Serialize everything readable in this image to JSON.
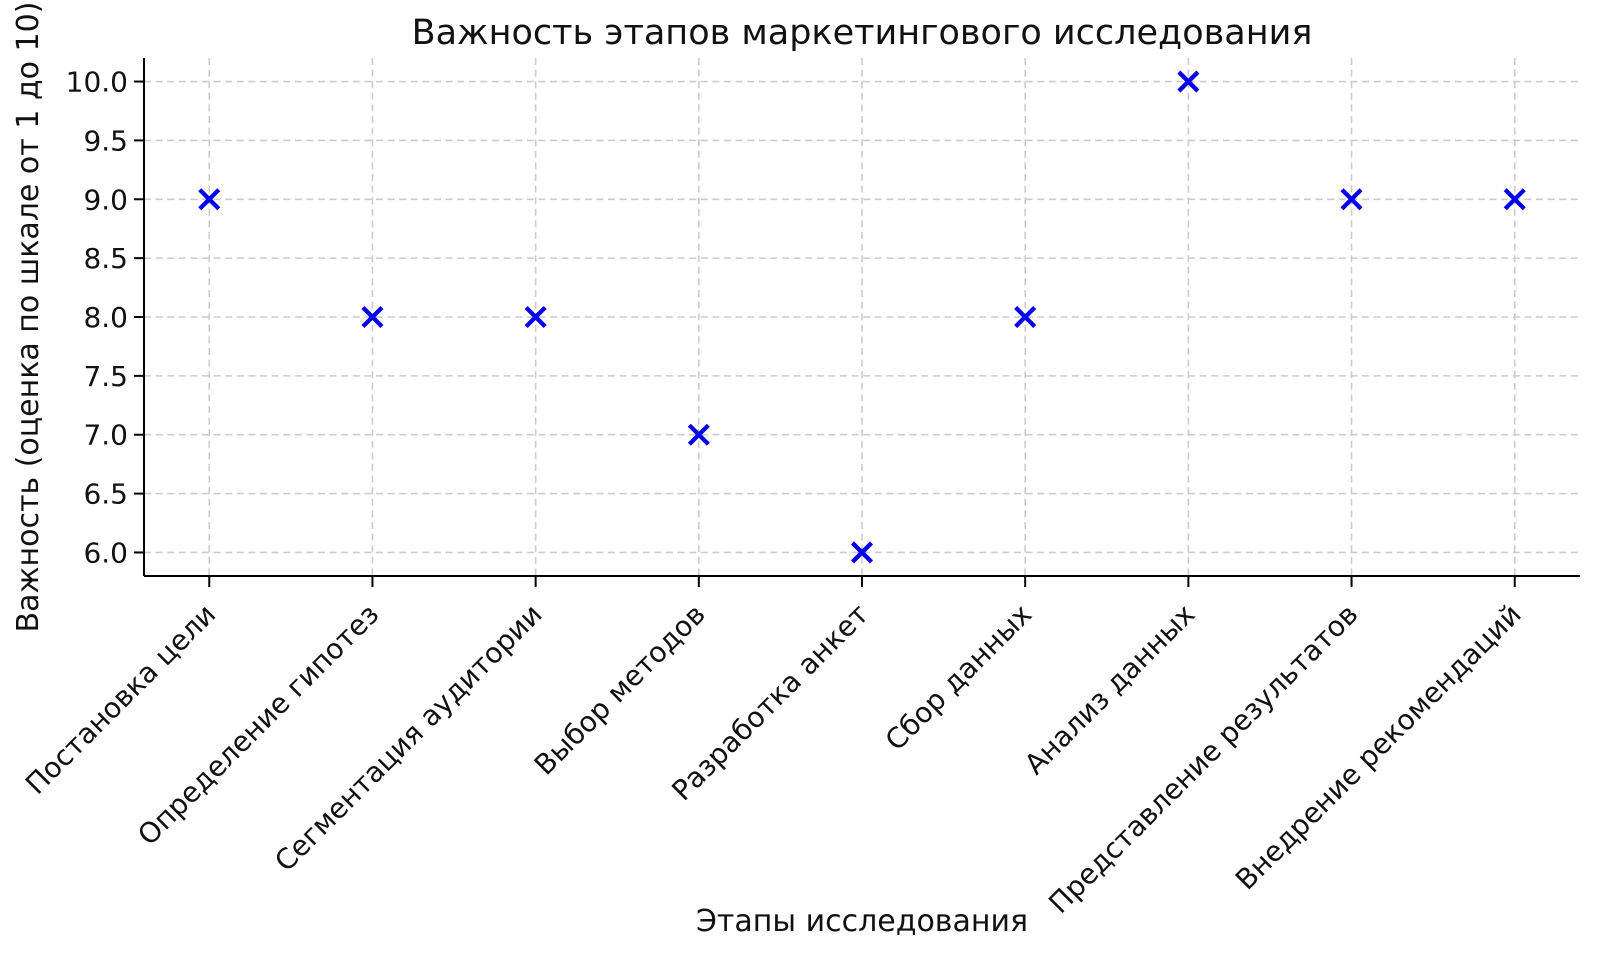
{
  "chart_data": {
    "type": "scatter",
    "title": "Важность этапов маркетингового исследования",
    "xlabel": "Этапы исследования",
    "ylabel": "Важность (оценка по шкале от 1 до 10)",
    "categories": [
      "Постановка цели",
      "Определение гипотез",
      "Сегментация аудитории",
      "Выбор методов",
      "Разработка анкет",
      "Сбор данных",
      "Анализ данных",
      "Представление результатов",
      "Внедрение рекомендаций"
    ],
    "values": [
      9,
      8,
      8,
      7,
      6,
      8,
      10,
      9,
      9
    ],
    "y_tick_labels": [
      "6.0",
      "6.5",
      "7.0",
      "7.5",
      "8.0",
      "8.5",
      "9.0",
      "9.5",
      "10.0"
    ],
    "ylim": [
      5.8,
      10.2
    ],
    "x_pad_categories": 0.4,
    "grid": true,
    "grid_style": "dashed",
    "legend": "none",
    "marker": {
      "shape": "x",
      "color": "#0000ee",
      "half_size": 9.5,
      "stroke_width": 4.3
    },
    "colors": {
      "grid": "#cccccc",
      "axis": "#000000",
      "text": "#111111",
      "background": "#ffffff"
    }
  }
}
